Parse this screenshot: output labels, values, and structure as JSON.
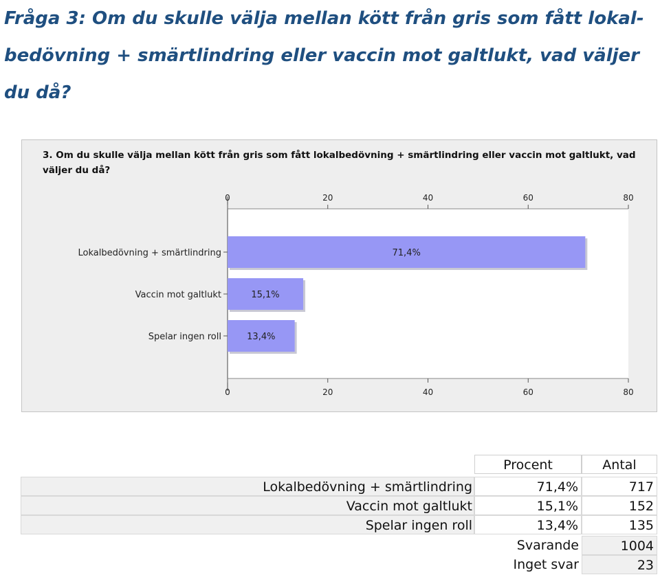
{
  "heading": "Fråga 3: Om du skulle välja mellan kött från gris som fått lokal-bedövning + smärtlindring eller vaccin mot galtlukt, vad väljer du då?",
  "chart_data": {
    "type": "bar",
    "orientation": "horizontal",
    "title": "3. Om du skulle välja mellan kött från gris som fått lokalbedövning + smärtlindring eller vaccin mot galtlukt, vad väljer du då?",
    "categories": [
      "Lokalbedövning + smärtlindring",
      "Vaccin mot galtlukt",
      "Spelar ingen roll"
    ],
    "values": [
      71.4,
      15.1,
      13.4
    ],
    "value_labels": [
      "71,4%",
      "15,1%",
      "13,4%"
    ],
    "xlim": [
      0,
      80
    ],
    "ticks": [
      0,
      20,
      40,
      60,
      80
    ],
    "tick_labels": [
      "0",
      "20",
      "40",
      "60",
      "80"
    ],
    "bar_color": "#9797f5",
    "plot_background": "#ffffff",
    "frame_background": "#eeeeee",
    "grid": false
  },
  "table": {
    "headers": [
      "Procent",
      "Antal"
    ],
    "rows": [
      {
        "label": "Lokalbedövning + smärtlindring",
        "percent": "71,4%",
        "count": "717"
      },
      {
        "label": "Vaccin mot galtlukt",
        "percent": "15,1%",
        "count": "152"
      },
      {
        "label": "Spelar ingen roll",
        "percent": "13,4%",
        "count": "135"
      }
    ],
    "answered_label": "Svarande",
    "answered_value": "1004",
    "skipped_label": "Inget svar",
    "skipped_value": "23"
  }
}
